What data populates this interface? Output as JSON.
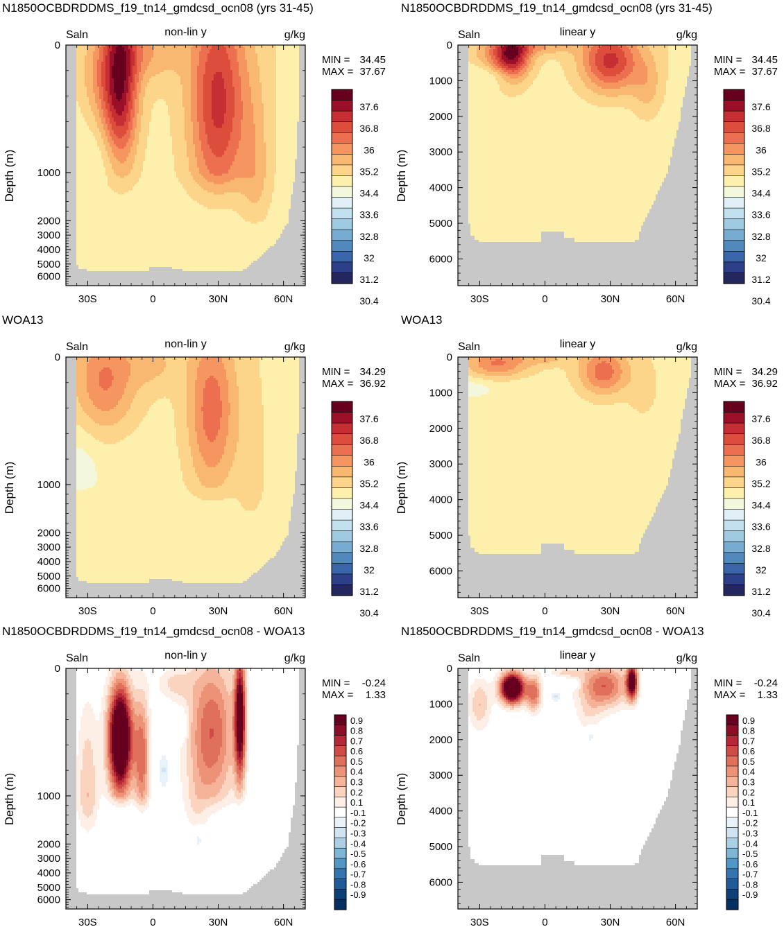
{
  "chart_data": [
    {
      "type": "heatmap",
      "title": "N1850OCBDRDDMS_f19_tn14_gmdcsd_ocn08 (yrs 31-45)",
      "left_label": "Saln",
      "center_label": "non-lin y",
      "right_label": "g/kg",
      "ylabel": "Depth (m)",
      "y_scale": "non-linear",
      "y_ticks": [
        "0",
        "1000",
        "2000",
        "3000",
        "4000",
        "5000",
        "6000"
      ],
      "x_ticks": [
        "30S",
        "0",
        "30N",
        "60N"
      ],
      "xlim": [
        -40,
        70
      ],
      "ylim": [
        0,
        6750
      ],
      "min_label": "MIN = ",
      "min_value": "34.45",
      "max_label": "MAX = ",
      "max_value": "37.67",
      "colorbar": {
        "labels": [
          "37.6",
          "36.8",
          "36",
          "35.2",
          "34.4",
          "33.6",
          "32.8",
          "32",
          "31.2",
          "30.4"
        ],
        "kind": "full"
      },
      "field": "model"
    },
    {
      "type": "heatmap",
      "title": "N1850OCBDRDDMS_f19_tn14_gmdcsd_ocn08 (yrs 31-45)",
      "left_label": "Saln",
      "center_label": "linear y",
      "right_label": "g/kg",
      "ylabel": "Depth (m)",
      "y_scale": "linear",
      "y_ticks": [
        "0",
        "1000",
        "2000",
        "3000",
        "4000",
        "5000",
        "6000"
      ],
      "x_ticks": [
        "30S",
        "0",
        "30N",
        "60N"
      ],
      "xlim": [
        -40,
        70
      ],
      "ylim": [
        0,
        6750
      ],
      "min_label": "MIN = ",
      "min_value": "34.45",
      "max_label": "MAX = ",
      "max_value": "37.67",
      "colorbar": {
        "labels": [
          "37.6",
          "36.8",
          "36",
          "35.2",
          "34.4",
          "33.6",
          "32.8",
          "32",
          "31.2",
          "30.4"
        ],
        "kind": "full"
      },
      "field": "model"
    },
    {
      "type": "heatmap",
      "title": "WOA13",
      "left_label": "Saln",
      "center_label": "non-lin y",
      "right_label": "g/kg",
      "ylabel": "Depth (m)",
      "y_scale": "non-linear",
      "y_ticks": [
        "0",
        "1000",
        "2000",
        "3000",
        "4000",
        "5000",
        "6000"
      ],
      "x_ticks": [
        "30S",
        "0",
        "30N",
        "60N"
      ],
      "xlim": [
        -40,
        70
      ],
      "ylim": [
        0,
        6750
      ],
      "min_label": "MIN = ",
      "min_value": "34.29",
      "max_label": "MAX = ",
      "max_value": "36.92",
      "colorbar": {
        "labels": [
          "37.6",
          "36.8",
          "36",
          "35.2",
          "34.4",
          "33.6",
          "32.8",
          "32",
          "31.2",
          "30.4"
        ],
        "kind": "full"
      },
      "field": "obs"
    },
    {
      "type": "heatmap",
      "title": "WOA13",
      "left_label": "Saln",
      "center_label": "linear y",
      "right_label": "g/kg",
      "ylabel": "Depth (m)",
      "y_scale": "linear",
      "y_ticks": [
        "0",
        "1000",
        "2000",
        "3000",
        "4000",
        "5000",
        "6000"
      ],
      "x_ticks": [
        "30S",
        "0",
        "30N",
        "60N"
      ],
      "xlim": [
        -40,
        70
      ],
      "ylim": [
        0,
        6750
      ],
      "min_label": "MIN = ",
      "min_value": "34.29",
      "max_label": "MAX = ",
      "max_value": "36.92",
      "colorbar": {
        "labels": [
          "37.6",
          "36.8",
          "36",
          "35.2",
          "34.4",
          "33.6",
          "32.8",
          "32",
          "31.2",
          "30.4"
        ],
        "kind": "full"
      },
      "field": "obs"
    },
    {
      "type": "heatmap",
      "title": "N1850OCBDRDDMS_f19_tn14_gmdcsd_ocn08 - WOA13",
      "left_label": "Saln",
      "center_label": "non-lin y",
      "right_label": "g/kg",
      "ylabel": "Depth (m)",
      "y_scale": "non-linear",
      "y_ticks": [
        "0",
        "1000",
        "2000",
        "3000",
        "4000",
        "5000",
        "6000"
      ],
      "x_ticks": [
        "30S",
        "0",
        "30N",
        "60N"
      ],
      "xlim": [
        -40,
        70
      ],
      "ylim": [
        0,
        6750
      ],
      "min_label": "MIN = ",
      "min_value": "-0.24",
      "max_label": "MAX = ",
      "max_value": "1.33",
      "colorbar": {
        "labels": [
          "0.9",
          "0.8",
          "0.7",
          "0.6",
          "0.5",
          "0.4",
          "0.3",
          "0.2",
          "0.1",
          "-0.1",
          "-0.2",
          "-0.3",
          "-0.4",
          "-0.5",
          "-0.6",
          "-0.7",
          "-0.8",
          "-0.9"
        ],
        "kind": "diff"
      },
      "field": "diff"
    },
    {
      "type": "heatmap",
      "title": "N1850OCBDRDDMS_f19_tn14_gmdcsd_ocn08 - WOA13",
      "left_label": "Saln",
      "center_label": "linear y",
      "right_label": "g/kg",
      "ylabel": "Depth (m)",
      "y_scale": "linear",
      "y_ticks": [
        "0",
        "1000",
        "2000",
        "3000",
        "4000",
        "5000",
        "6000"
      ],
      "x_ticks": [
        "30S",
        "0",
        "30N",
        "60N"
      ],
      "xlim": [
        -40,
        70
      ],
      "ylim": [
        0,
        6750
      ],
      "min_label": "MIN = ",
      "min_value": "-0.24",
      "max_label": "MAX = ",
      "max_value": "1.33",
      "colorbar": {
        "labels": [
          "0.9",
          "0.8",
          "0.7",
          "0.6",
          "0.5",
          "0.4",
          "0.3",
          "0.2",
          "0.1",
          "-0.1",
          "-0.2",
          "-0.3",
          "-0.4",
          "-0.5",
          "-0.6",
          "-0.7",
          "-0.8",
          "-0.9"
        ],
        "kind": "diff"
      },
      "field": "diff"
    }
  ],
  "palettes": {
    "full": [
      "#67001f",
      "#9b1028",
      "#c52e32",
      "#dc4d3c",
      "#ec7050",
      "#f59560",
      "#f9b872",
      "#fcd58b",
      "#fdf0ad",
      "#f3f8dc",
      "#e0f0f6",
      "#c2e0ee",
      "#9ecbe2",
      "#77acd1",
      "#5188bd",
      "#3a65a8",
      "#2c3f88",
      "#24265e"
    ],
    "diff": [
      "#67001f",
      "#8f0e27",
      "#b52835",
      "#cf4b45",
      "#de705c",
      "#eb9277",
      "#f5b49a",
      "#fbd4c0",
      "#fdeee6",
      "#ffffff",
      "#e8f2f8",
      "#cfe4f0",
      "#abd0e5",
      "#7fb6d6",
      "#5196c5",
      "#3475b0",
      "#1f5b99",
      "#0d3f78",
      "#053061"
    ],
    "land": "#c8c8c8"
  }
}
